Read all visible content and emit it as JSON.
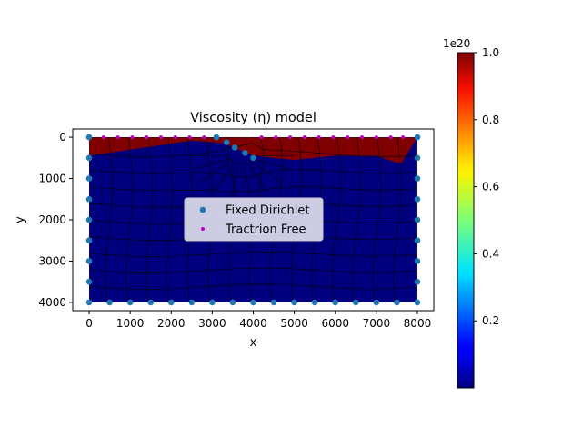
{
  "chart_data": {
    "type": "mesh",
    "title": "Viscosity (η) model",
    "xlabel": "x",
    "ylabel": "y",
    "xlim": [
      -400,
      8400
    ],
    "ylim": [
      4200,
      -200
    ],
    "y_inverted": true,
    "xticks": [
      0,
      1000,
      2000,
      3000,
      4000,
      5000,
      6000,
      7000,
      8000
    ],
    "yticks": [
      0,
      1000,
      2000,
      3000,
      4000
    ],
    "domain": {
      "x": [
        0,
        8000
      ],
      "y": [
        0,
        4000
      ]
    },
    "regions": [
      {
        "name": "top-layer",
        "color": "#800000",
        "viscosity_scaled": 1.0
      },
      {
        "name": "body",
        "color": "#00007f",
        "viscosity_scaled": 0.0
      }
    ],
    "top_layer_profile": {
      "x": [
        0,
        1000,
        1700,
        2500,
        3300,
        4000,
        5000,
        6000,
        7000,
        7600,
        8000
      ],
      "bottom_y": [
        450,
        300,
        200,
        80,
        150,
        450,
        550,
        450,
        450,
        650,
        0
      ]
    },
    "series": [
      {
        "name": "Fixed Dirichlet",
        "color": "#1f77b4",
        "marker": "circle",
        "points": [
          [
            0,
            0
          ],
          [
            0,
            500
          ],
          [
            0,
            1000
          ],
          [
            0,
            1500
          ],
          [
            0,
            2000
          ],
          [
            0,
            2500
          ],
          [
            0,
            3000
          ],
          [
            0,
            3500
          ],
          [
            0,
            4000
          ],
          [
            8000,
            0
          ],
          [
            8000,
            500
          ],
          [
            8000,
            1000
          ],
          [
            8000,
            1500
          ],
          [
            8000,
            2000
          ],
          [
            8000,
            2500
          ],
          [
            8000,
            3000
          ],
          [
            8000,
            3500
          ],
          [
            8000,
            4000
          ],
          [
            500,
            4000
          ],
          [
            1000,
            4000
          ],
          [
            1500,
            4000
          ],
          [
            2000,
            4000
          ],
          [
            2500,
            4000
          ],
          [
            3000,
            4000
          ],
          [
            3500,
            4000
          ],
          [
            4000,
            4000
          ],
          [
            4500,
            4000
          ],
          [
            5000,
            4000
          ],
          [
            5500,
            4000
          ],
          [
            6000,
            4000
          ],
          [
            6500,
            4000
          ],
          [
            7000,
            4000
          ],
          [
            7500,
            4000
          ],
          [
            3100,
            0
          ],
          [
            3350,
            120
          ],
          [
            3550,
            250
          ],
          [
            3800,
            380
          ],
          [
            4000,
            500
          ]
        ]
      },
      {
        "name": "Tractrion Free",
        "color": "#bf00bf",
        "marker": "small-circle",
        "points": [
          [
            350,
            0
          ],
          [
            700,
            0
          ],
          [
            1050,
            0
          ],
          [
            1400,
            0
          ],
          [
            1750,
            0
          ],
          [
            2100,
            0
          ],
          [
            2450,
            0
          ],
          [
            2800,
            0
          ],
          [
            4200,
            0
          ],
          [
            4550,
            0
          ],
          [
            4900,
            0
          ],
          [
            5250,
            0
          ],
          [
            5600,
            0
          ],
          [
            5950,
            0
          ],
          [
            6300,
            0
          ],
          [
            6650,
            0
          ],
          [
            7000,
            0
          ],
          [
            7350,
            0
          ],
          [
            7650,
            0
          ]
        ]
      }
    ],
    "colorbar": {
      "multiplier": "1e20",
      "min": 0,
      "max": 1.0,
      "ticks": [
        0.2,
        0.4,
        0.6,
        0.8,
        1.0
      ],
      "tick_labels": [
        "0.2",
        "0.4",
        "0.6",
        "0.8",
        "1.0"
      ],
      "colormap": "jet"
    },
    "legend_position": "center",
    "grid": false
  }
}
